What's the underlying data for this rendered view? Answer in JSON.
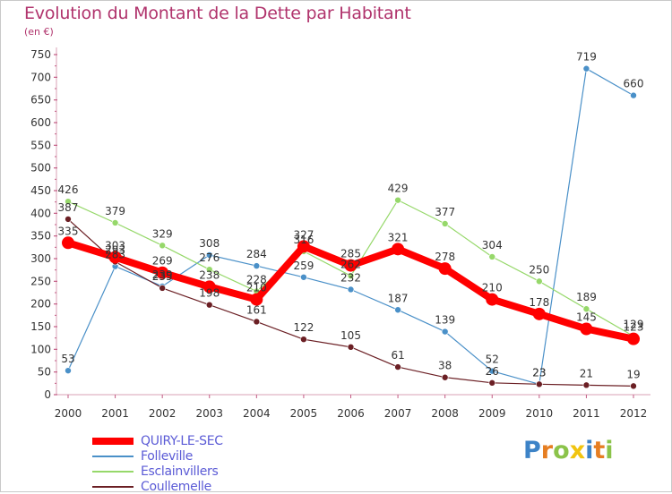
{
  "title": "Evolution du Montant de la Dette par Habitant",
  "subtitle": "(en €)",
  "brand": {
    "text": "Proxiti",
    "letter_colors": [
      "#3d83c7",
      "#e67e22",
      "#8bc34a",
      "#f1c40f",
      "#3d83c7",
      "#e67e22",
      "#8bc34a"
    ]
  },
  "chart_data": {
    "type": "line",
    "title": "Evolution du Montant de la Dette par Habitant",
    "subtitle": "(en €)",
    "xlabel": "",
    "ylabel": "",
    "ylim": [
      0,
      750
    ],
    "yticks": [
      0,
      50,
      100,
      150,
      200,
      250,
      300,
      350,
      400,
      450,
      500,
      550,
      600,
      650,
      700,
      750
    ],
    "grid": false,
    "legend_position": "bottom-left",
    "categories": [
      "2000",
      "2001",
      "2002",
      "2003",
      "2004",
      "2005",
      "2006",
      "2007",
      "2008",
      "2009",
      "2010",
      "2011",
      "2012"
    ],
    "series": [
      {
        "name": "QUIRY-LE-SEC",
        "color": "#ff0000",
        "values": [
          335,
          303,
          269,
          238,
          210,
          327,
          285,
          321,
          278,
          210,
          178,
          145,
          123
        ]
      },
      {
        "name": "Folleville",
        "color": "#4a90c8",
        "values": [
          53,
          283,
          239,
          308,
          284,
          259,
          232,
          187,
          139,
          52,
          23,
          719,
          660
        ]
      },
      {
        "name": "Esclainvillers",
        "color": "#96d86a",
        "values": [
          426,
          379,
          329,
          276,
          228,
          316,
          262,
          429,
          377,
          304,
          250,
          189,
          129
        ]
      },
      {
        "name": "Coullemelle",
        "color": "#6b1f24",
        "values": [
          387,
          293,
          235,
          198,
          161,
          122,
          105,
          61,
          38,
          26,
          23,
          21,
          19
        ]
      }
    ]
  }
}
